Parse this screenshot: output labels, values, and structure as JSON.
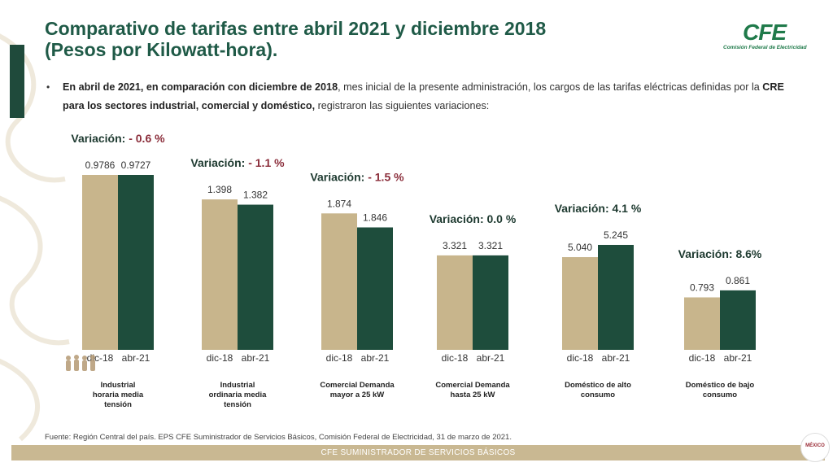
{
  "title": {
    "line1": "Comparativo de tarifas entre abril 2021 y diciembre 2018",
    "line2": "(Pesos por Kilowatt-hora)."
  },
  "logo": {
    "mark": "CFE",
    "subtitle": "Comisión Federal de Electricidad"
  },
  "bullet": {
    "p1_bold": "En abril de 2021, en comparación con diciembre de 2018",
    "p2": ", mes inicial de la presente administración, los cargos de las tarifas eléctricas definidas por la ",
    "p3_bold": "CRE para los sectores industrial, comercial y doméstico,",
    "p4": " registraron las siguientes variaciones:"
  },
  "colors": {
    "dic18": "#c8b58c",
    "abr21": "#1e4d3c",
    "negative": "#8b2e3b",
    "title": "#1f5a47"
  },
  "chart_data": {
    "type": "bar",
    "series": [
      {
        "name": "dic-18",
        "color": "#c8b58c"
      },
      {
        "name": "abr-21",
        "color": "#1e4d3c"
      }
    ],
    "groups": [
      {
        "category": "Industrial horaria media tensión",
        "variation_label": "Variación:",
        "variation_value": "- 0.6 %",
        "negative": true,
        "values": [
          0.9786,
          0.9727
        ],
        "value_labels": [
          "0.9786",
          "0.9727"
        ],
        "tick_labels": [
          "dic-18",
          "abr-21"
        ]
      },
      {
        "category": "Industrial ordinaria media tensión",
        "variation_label": "Variación:",
        "variation_value": "- 1.1 %",
        "negative": true,
        "values": [
          1.398,
          1.382
        ],
        "value_labels": [
          "1.398",
          "1.382"
        ],
        "tick_labels": [
          "dic-18",
          "abr-21"
        ]
      },
      {
        "category": "Comercial Demanda mayor a 25 kW",
        "variation_label": "Variación:",
        "variation_value": "- 1.5 %",
        "negative": true,
        "values": [
          1.874,
          1.846
        ],
        "value_labels": [
          "1.874",
          "1.846"
        ],
        "tick_labels": [
          "dic-18",
          "abr-21"
        ]
      },
      {
        "category": "Comercial Demanda hasta 25 kW",
        "variation_label": "Variación:",
        "variation_value": "0.0 %",
        "negative": false,
        "values": [
          3.321,
          3.321
        ],
        "value_labels": [
          "3.321",
          "3.321"
        ],
        "tick_labels": [
          "dic-18",
          "abr-21"
        ]
      },
      {
        "category": "Doméstico de alto consumo",
        "variation_label": "Variación:",
        "variation_value": "4.1 %",
        "negative": false,
        "values": [
          5.04,
          5.245
        ],
        "value_labels": [
          "5.040",
          "5.245"
        ],
        "tick_labels": [
          "dic-18",
          "abr-21"
        ]
      },
      {
        "category": "Doméstico de bajo consumo",
        "variation_label": "Variación:",
        "variation_value": "8.6%",
        "negative": false,
        "values": [
          0.793,
          0.861
        ],
        "value_labels": [
          "0.793",
          "0.861"
        ],
        "tick_labels": [
          "dic-18",
          "abr-21"
        ]
      }
    ]
  },
  "footer": {
    "source": "Fuente: Región Central del país. EPS CFE Suministrador de Servicios Básicos, Comisión Federal de Electricidad, 31 de marzo de 2021.",
    "bar": "CFE SUMINISTRADOR DE SERVICIOS BÁSICOS",
    "gob": "MÉXICO"
  }
}
